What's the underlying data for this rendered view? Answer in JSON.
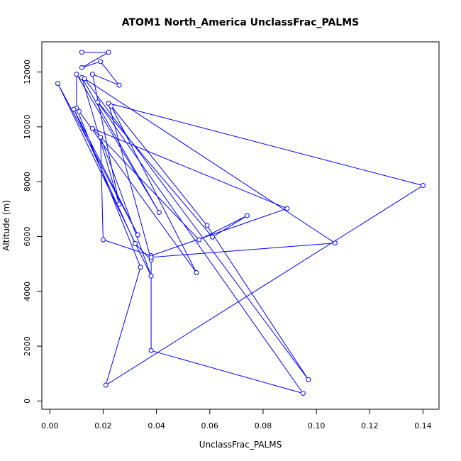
{
  "chart_data": {
    "type": "line",
    "title": "ATOM1 North_America UnclassFrac_PALMS",
    "xlabel": "UnclassFrac_PALMS",
    "ylabel": "Altitude (m)",
    "xlim": [
      -0.003,
      0.146
    ],
    "ylim": [
      -300,
      13100
    ],
    "xticks": [
      0.0,
      0.02,
      0.04,
      0.06,
      0.08,
      0.1,
      0.12,
      0.14
    ],
    "xtick_labels": [
      "0.00",
      "0.02",
      "0.04",
      "0.06",
      "0.08",
      "0.10",
      "0.12",
      "0.14"
    ],
    "yticks": [
      0,
      2000,
      4000,
      6000,
      8000,
      10000,
      12000
    ],
    "ytick_labels": [
      "0",
      "2000",
      "4000",
      "6000",
      "8000",
      "10000",
      "12000"
    ],
    "grid": false,
    "series": [
      {
        "color": "#0000ff",
        "marker": "open-circle",
        "points": [
          [
            0.012,
            12720
          ],
          [
            0.022,
            12720
          ],
          [
            0.012,
            12160
          ],
          [
            0.019,
            12380
          ],
          [
            0.026,
            11520
          ],
          [
            0.016,
            11920
          ],
          [
            0.026,
            7180
          ],
          [
            0.012,
            11800
          ],
          [
            0.041,
            6880
          ],
          [
            0.01,
            11920
          ],
          [
            0.01,
            10680
          ],
          [
            0.034,
            4880
          ],
          [
            0.021,
            580
          ],
          [
            0.14,
            7860
          ],
          [
            0.022,
            10860
          ],
          [
            0.038,
            5140
          ],
          [
            0.032,
            5740
          ],
          [
            0.009,
            10640
          ],
          [
            0.033,
            6060
          ],
          [
            0.003,
            11580
          ],
          [
            0.038,
            4560
          ],
          [
            0.019,
            9620
          ],
          [
            0.02,
            5880
          ],
          [
            0.038,
            5300
          ],
          [
            0.089,
            7020
          ],
          [
            0.016,
            9940
          ],
          [
            0.056,
            5880
          ],
          [
            0.074,
            6760
          ],
          [
            0.061,
            5980
          ],
          [
            0.018,
            10900
          ],
          [
            0.095,
            280
          ],
          [
            0.038,
            1840
          ],
          [
            0.038,
            5240
          ],
          [
            0.107,
            5760
          ],
          [
            0.013,
            11760
          ],
          [
            0.097,
            780
          ],
          [
            0.059,
            6400
          ],
          [
            0.023,
            10760
          ],
          [
            0.055,
            4680
          ],
          [
            0.011,
            10560
          ]
        ]
      }
    ]
  }
}
